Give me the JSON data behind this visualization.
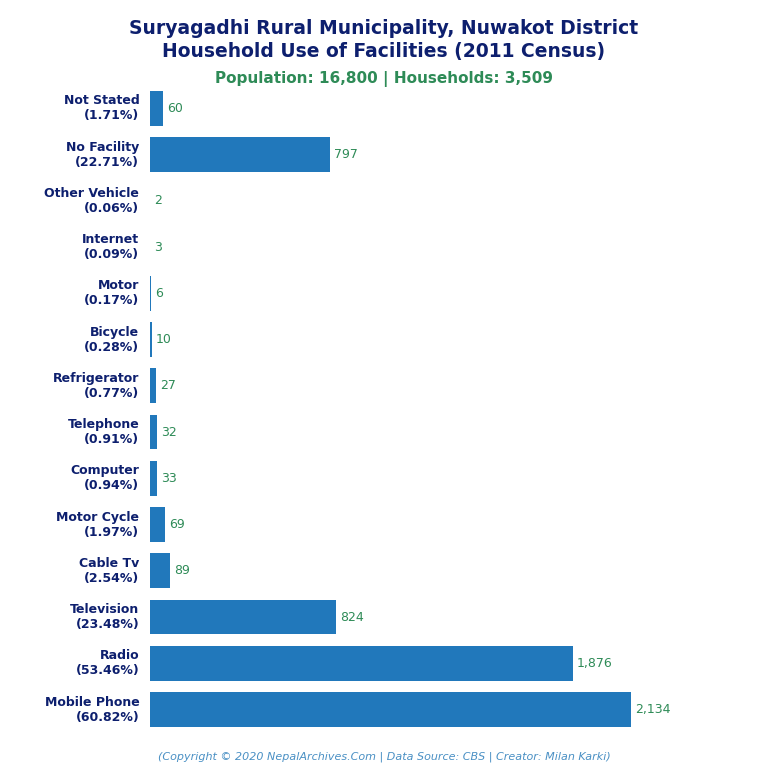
{
  "title_line1": "Suryagadhi Rural Municipality, Nuwakot District",
  "title_line2": "Household Use of Facilities (2011 Census)",
  "subtitle": "Population: 16,800 | Households: 3,509",
  "copyright": "(Copyright © 2020 NepalArchives.Com | Data Source: CBS | Creator: Milan Karki)",
  "categories": [
    "Not Stated\n(1.71%)",
    "No Facility\n(22.71%)",
    "Other Vehicle\n(0.06%)",
    "Internet\n(0.09%)",
    "Motor\n(0.17%)",
    "Bicycle\n(0.28%)",
    "Refrigerator\n(0.77%)",
    "Telephone\n(0.91%)",
    "Computer\n(0.94%)",
    "Motor Cycle\n(1.97%)",
    "Cable Tv\n(2.54%)",
    "Television\n(23.48%)",
    "Radio\n(53.46%)",
    "Mobile Phone\n(60.82%)"
  ],
  "values": [
    60,
    797,
    2,
    3,
    6,
    10,
    27,
    32,
    33,
    69,
    89,
    824,
    1876,
    2134
  ],
  "bar_color": "#2178bb",
  "value_color": "#2e8b57",
  "title_color": "#0d1f6e",
  "subtitle_color": "#2e8b57",
  "copyright_color": "#4a90c4",
  "background_color": "#ffffff",
  "xlim": [
    0,
    2400
  ]
}
